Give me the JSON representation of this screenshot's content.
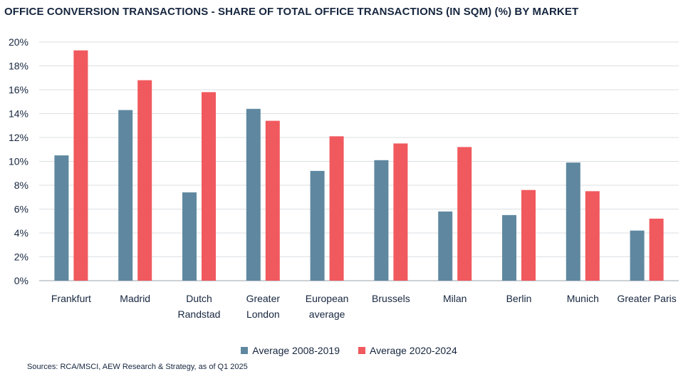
{
  "title": "OFFICE CONVERSION TRANSACTIONS - SHARE OF TOTAL OFFICE TRANSACTIONS (IN SQM) (%) BY MARKET",
  "source": "Sources: RCA/MSCI, AEW Research & Strategy, as of Q1 2025",
  "chart_data": {
    "type": "bar",
    "title": "OFFICE CONVERSION TRANSACTIONS - SHARE OF TOTAL OFFICE TRANSACTIONS (IN SQM) (%) BY MARKET",
    "categories": [
      [
        "Frankfurt"
      ],
      [
        "Madrid"
      ],
      [
        "Dutch",
        "Randstad"
      ],
      [
        "Greater",
        "London"
      ],
      [
        "European",
        "average"
      ],
      [
        "Brussels"
      ],
      [
        "Milan"
      ],
      [
        "Berlin"
      ],
      [
        "Munich"
      ],
      [
        "Greater Paris"
      ]
    ],
    "series": [
      {
        "name": "Average 2008-2019",
        "color": "#5f88a0",
        "values": [
          10.5,
          14.3,
          7.4,
          14.4,
          9.2,
          10.1,
          5.8,
          5.5,
          9.9,
          4.2
        ]
      },
      {
        "name": "Average 2020-2024",
        "color": "#f0595d",
        "values": [
          19.3,
          16.8,
          15.8,
          13.4,
          12.1,
          11.5,
          11.2,
          7.6,
          7.5,
          5.2
        ]
      }
    ],
    "yticks": [
      "0%",
      "2%",
      "4%",
      "6%",
      "8%",
      "10%",
      "12%",
      "14%",
      "16%",
      "18%",
      "20%"
    ],
    "ylim": [
      0,
      20
    ],
    "xlabel": "",
    "ylabel": "",
    "grid": true,
    "legend_position": "bottom"
  }
}
